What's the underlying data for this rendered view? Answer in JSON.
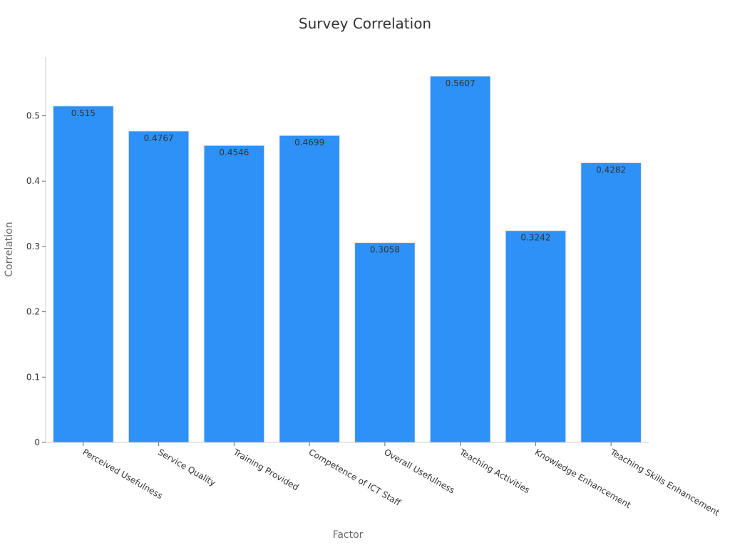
{
  "chart_data": {
    "type": "bar",
    "title": "Survey Correlation",
    "xlabel": "Factor",
    "ylabel": "Correlation",
    "categories": [
      "Perceived Usefulness",
      "Service Quality",
      "Training Provided",
      "Competence of ICT Staff",
      "Overall Usefulness",
      "Teaching Activities",
      "Knowledge Enhancement",
      "Teaching Skills Enhancement"
    ],
    "values": [
      0.515,
      0.4767,
      0.4546,
      0.4699,
      0.3058,
      0.5607,
      0.3242,
      0.4282
    ],
    "data_labels": [
      "0.515",
      "0.4767",
      "0.4546",
      "0.4699",
      "0.3058",
      "0.5607",
      "0.3242",
      "0.4282"
    ],
    "yticks": [
      0,
      0.1,
      0.2,
      0.3,
      0.4,
      0.5
    ],
    "ytick_labels": [
      "0",
      "0.1",
      "0.2",
      "0.3",
      "0.4",
      "0.5"
    ],
    "ylim": [
      0,
      0.59
    ],
    "grid": false,
    "legend": "none",
    "colors": {
      "bar": "#2d91f7",
      "bar_edge": "#e6e6e6"
    }
  }
}
